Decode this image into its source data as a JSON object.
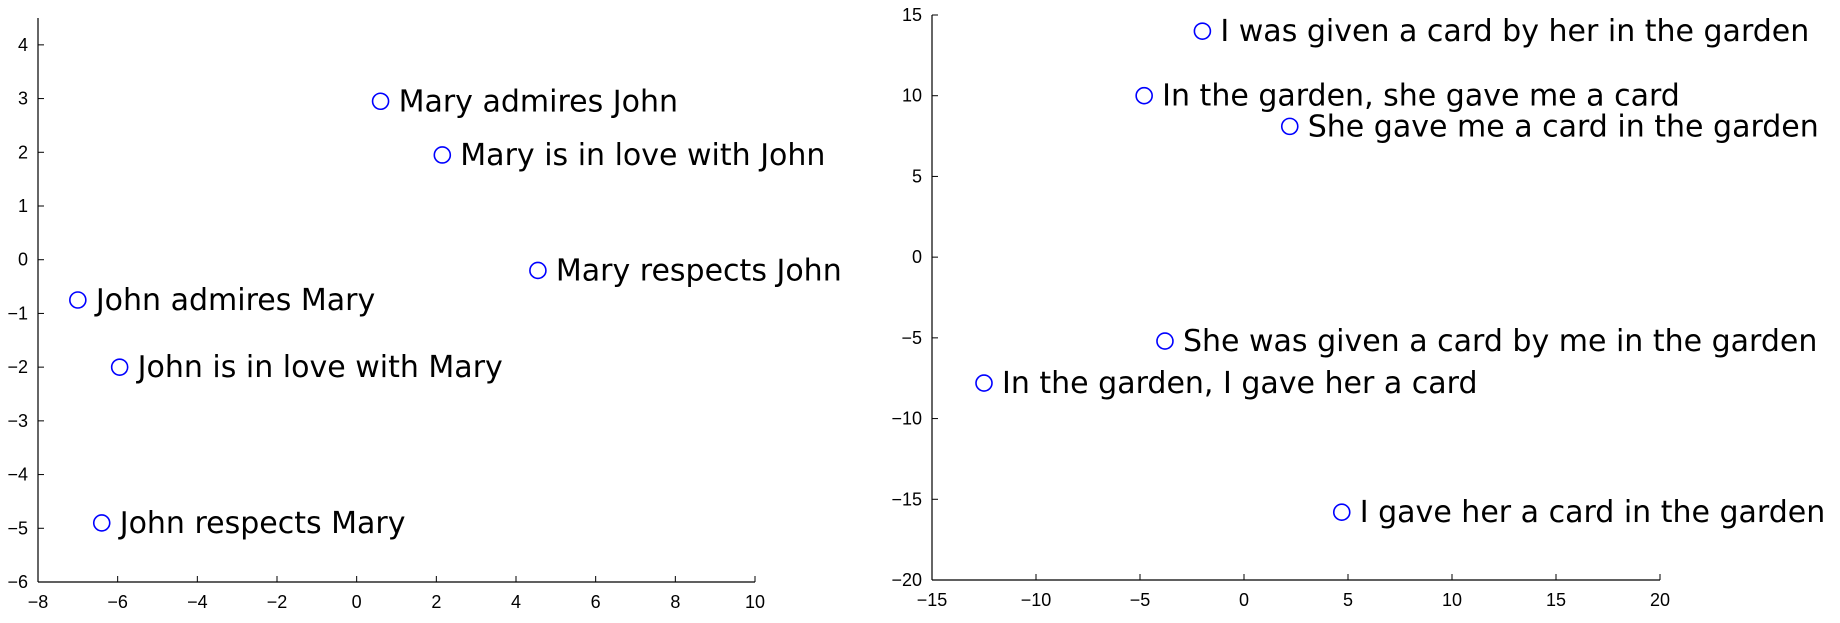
{
  "chart_data": [
    {
      "type": "scatter",
      "xlim": [
        -8,
        10
      ],
      "ylim": [
        -6,
        4.5
      ],
      "xticks": [
        -8,
        -6,
        -4,
        -2,
        0,
        2,
        4,
        6,
        8,
        10
      ],
      "yticks": [
        -6,
        -5,
        -4,
        -3,
        -2,
        -1,
        0,
        1,
        2,
        3,
        4
      ],
      "marker_color": "#0000ff",
      "points": [
        {
          "x": 0.6,
          "y": 2.95,
          "label": "Mary admires John"
        },
        {
          "x": 2.15,
          "y": 1.95,
          "label": "Mary is in love with John"
        },
        {
          "x": 4.55,
          "y": -0.2,
          "label": "Mary respects John"
        },
        {
          "x": -7.0,
          "y": -0.75,
          "label": "John admires Mary"
        },
        {
          "x": -5.95,
          "y": -2.0,
          "label": "John is in love with Mary"
        },
        {
          "x": -6.4,
          "y": -4.9,
          "label": "John respects Mary"
        }
      ]
    },
    {
      "type": "scatter",
      "xlim": [
        -15,
        20
      ],
      "ylim": [
        -20,
        15
      ],
      "xticks": [
        -15,
        -10,
        -5,
        0,
        5,
        10,
        15,
        20
      ],
      "yticks": [
        -20,
        -15,
        -10,
        -5,
        0,
        5,
        10,
        15
      ],
      "marker_color": "#0000ff",
      "points": [
        {
          "x": -2.0,
          "y": 14.0,
          "label": "I was given a card by her in the garden"
        },
        {
          "x": -4.8,
          "y": 10.0,
          "label": "In the garden, she gave me a card"
        },
        {
          "x": 2.2,
          "y": 8.1,
          "label": "She gave me a card in the garden"
        },
        {
          "x": -3.8,
          "y": -5.2,
          "label": "She was given a card by me in the garden"
        },
        {
          "x": -12.5,
          "y": -7.8,
          "label": "In the garden, I gave her a card"
        },
        {
          "x": 4.7,
          "y": -15.8,
          "label": "I gave her a card in the garden"
        }
      ]
    }
  ]
}
